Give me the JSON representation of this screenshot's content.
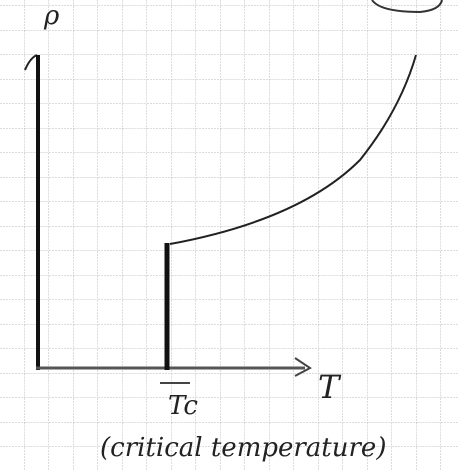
{
  "axes": {
    "y_label": "ρ",
    "x_label": "T"
  },
  "annotations": {
    "tc_label": "Tc",
    "tc_note": "(critical temperature)"
  }
}
